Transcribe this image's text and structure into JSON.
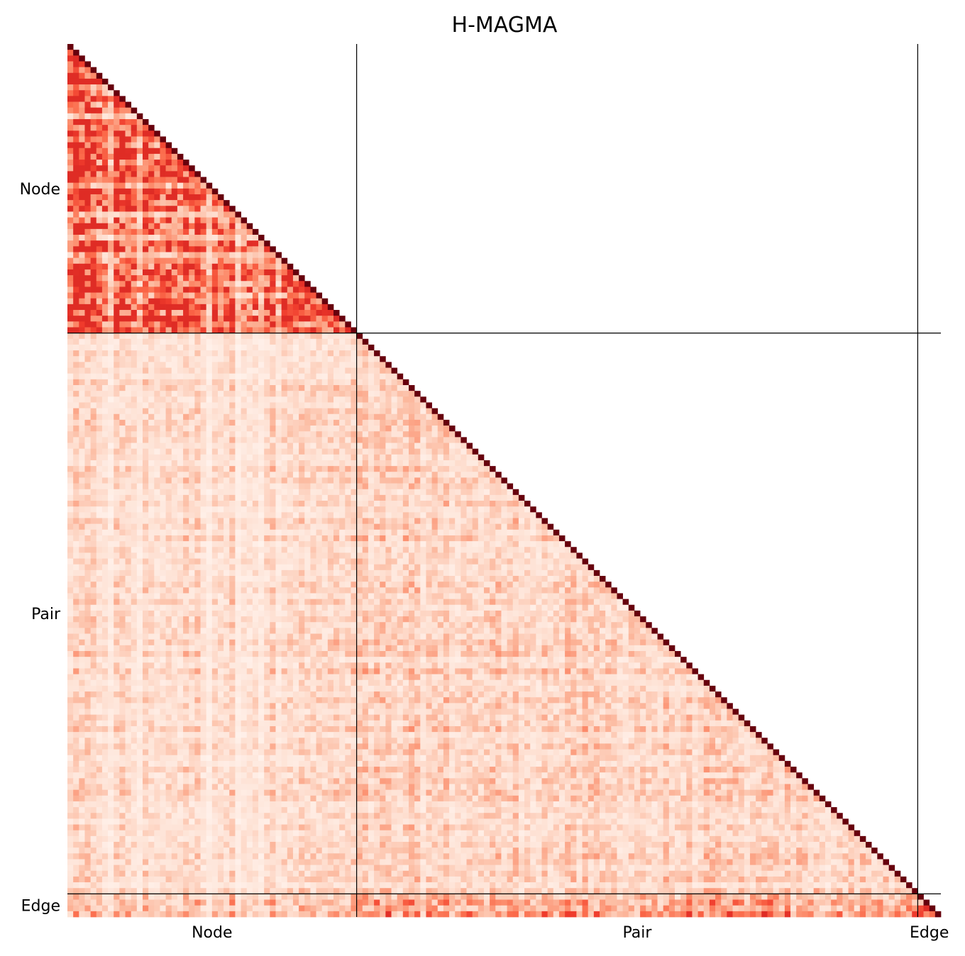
{
  "chart_data": {
    "type": "heatmap",
    "title": "H-MAGMA",
    "triangle": "lower",
    "colormap": "Reds",
    "blocks": [
      {
        "name": "Node",
        "count": 50
      },
      {
        "name": "Pair",
        "count": 97
      },
      {
        "name": "Edge",
        "count": 4
      }
    ],
    "xticklabels": [
      "Node",
      "Pair",
      "Edge"
    ],
    "yticklabels": [
      "Node",
      "Pair",
      "Edge"
    ],
    "block_mean_intensity": {
      "Node-Node": 0.55,
      "Pair-Node": 0.14,
      "Pair-Pair": 0.16,
      "Edge-Node": 0.22,
      "Edge-Pair": 0.28,
      "Edge-Edge": 0.5
    },
    "diagonal": 1.0,
    "block_separator_lines": true
  }
}
